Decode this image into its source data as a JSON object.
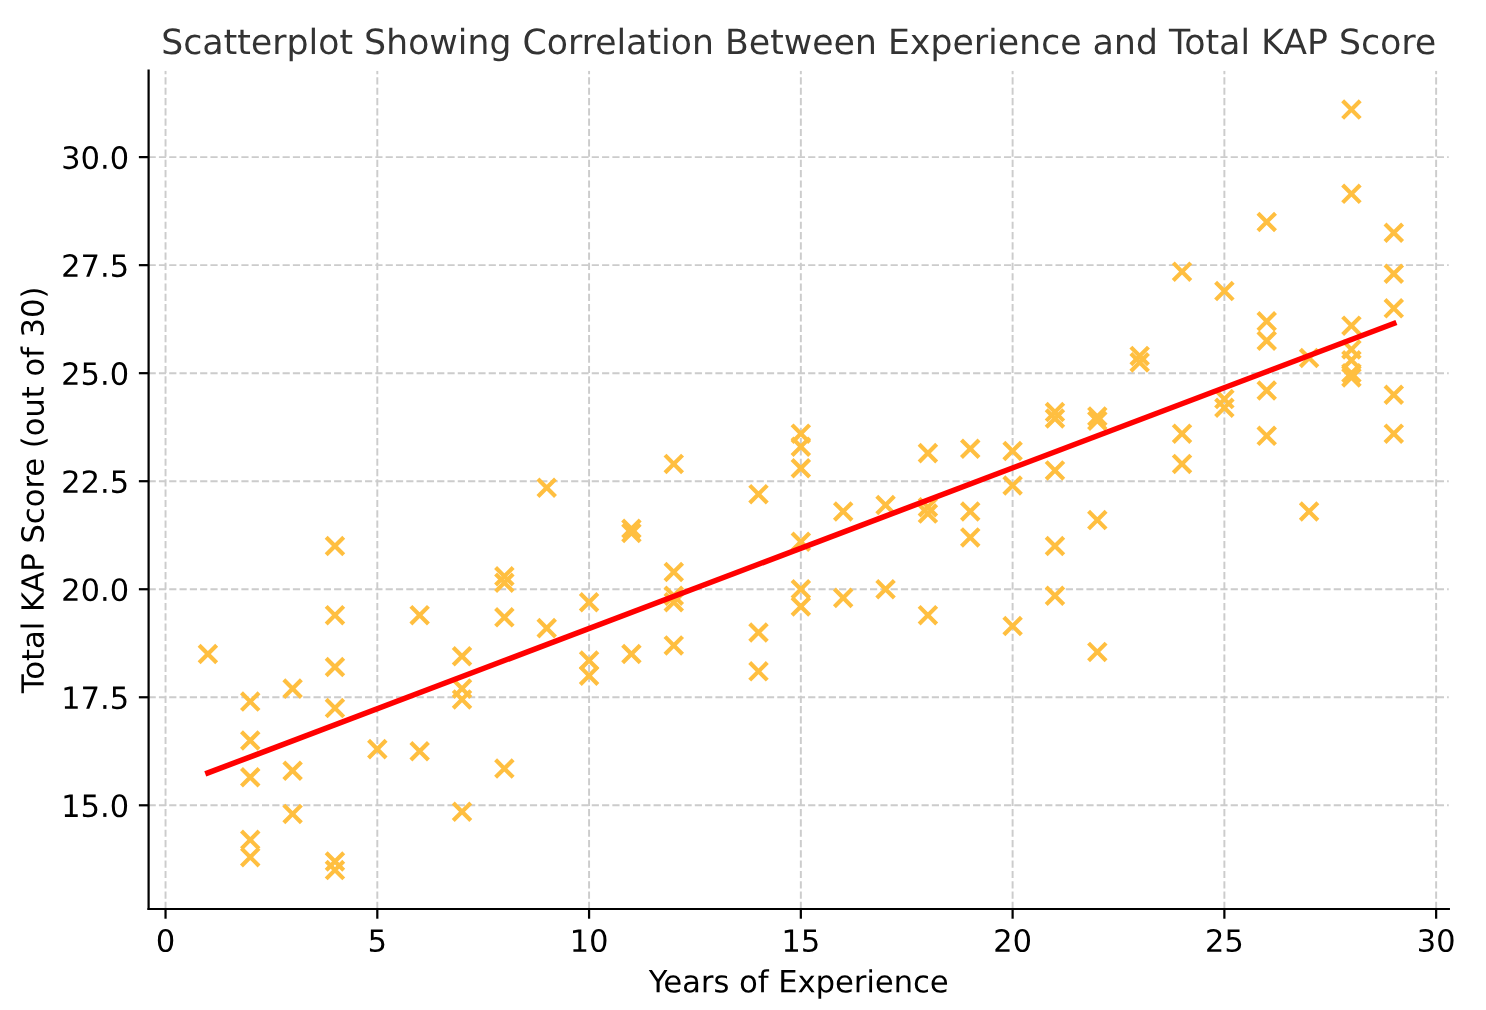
{
  "chart_data": {
    "type": "scatter",
    "title": "Scatterplot Showing Correlation Between Experience and Total KAP Score",
    "xlabel": "Years of Experience",
    "ylabel": "Total KAP Score (out of 30)",
    "xlim": [
      -0.4,
      30.3
    ],
    "ylim": [
      12.6,
      32.0
    ],
    "xticks": [
      0,
      5,
      10,
      15,
      20,
      25,
      30
    ],
    "yticks": [
      {
        "value": 15,
        "label": "15.0"
      },
      17.5,
      {
        "value": 20,
        "label": "20.0"
      },
      22.5,
      {
        "value": 25,
        "label": "25.0"
      },
      27.5,
      {
        "value": 30,
        "label": "30.0"
      }
    ],
    "grid": true,
    "series": [
      {
        "color": "#ffbf40",
        "marker": "cross",
        "x": [
          1,
          2,
          2,
          2,
          2,
          2,
          3,
          3,
          3,
          4,
          4,
          4,
          4,
          4,
          4,
          5,
          6,
          6,
          7,
          7,
          7,
          7,
          8,
          8,
          8,
          8,
          9,
          9,
          10,
          10,
          10,
          11,
          11,
          11,
          12,
          12,
          12,
          12,
          12,
          14,
          14,
          14,
          15,
          15,
          15,
          15,
          15,
          15,
          16,
          16,
          17,
          17,
          18,
          18,
          18,
          18,
          19,
          19,
          19,
          20,
          20,
          20,
          21,
          21,
          21,
          21,
          21,
          22,
          22,
          22,
          22,
          23,
          23,
          24,
          24,
          24,
          25,
          25,
          25,
          26,
          26,
          26,
          26,
          26,
          27,
          27,
          28,
          28,
          28,
          28,
          28,
          28,
          28,
          29,
          29,
          29,
          29,
          29
        ],
        "values": [
          18.5,
          17.4,
          16.5,
          15.65,
          14.2,
          13.8,
          17.7,
          15.8,
          14.8,
          21.0,
          19.4,
          18.2,
          17.25,
          13.7,
          13.5,
          16.3,
          19.4,
          16.25,
          18.45,
          17.7,
          17.45,
          14.85,
          20.3,
          20.15,
          19.35,
          15.85,
          22.35,
          19.1,
          19.7,
          18.35,
          18.0,
          21.4,
          21.3,
          18.5,
          22.9,
          20.4,
          19.85,
          19.7,
          18.7,
          22.2,
          19.0,
          18.1,
          23.6,
          23.3,
          22.8,
          21.1,
          20.0,
          19.6,
          21.8,
          19.8,
          21.95,
          20.0,
          23.15,
          21.9,
          21.75,
          19.4,
          23.25,
          21.8,
          21.2,
          23.2,
          22.4,
          19.15,
          24.1,
          23.95,
          22.75,
          21.0,
          19.85,
          24.0,
          23.9,
          21.6,
          18.55,
          25.4,
          25.25,
          27.35,
          23.6,
          22.9,
          26.9,
          24.4,
          24.2,
          28.5,
          26.2,
          25.75,
          24.6,
          23.55,
          25.35,
          21.8,
          31.1,
          29.15,
          26.1,
          25.55,
          25.3,
          25.0,
          24.9,
          28.25,
          27.3,
          26.5,
          24.5,
          23.6
        ]
      },
      {
        "type": "line",
        "color": "#ff0000",
        "line_style": "solid",
        "x": [
          1,
          29
        ],
        "values": [
          15.75,
          26.15
        ]
      }
    ]
  }
}
